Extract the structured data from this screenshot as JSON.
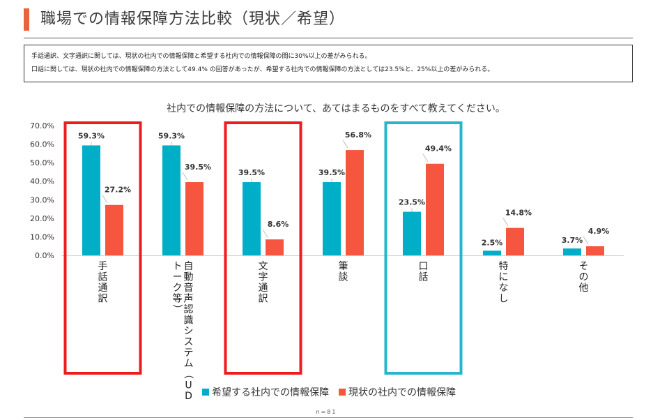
{
  "page": {
    "title": "職場での情報保障方法比較（現状／希望）",
    "summary": [
      "手話通訳、文字通訳に関しては、現状の社内での情報保障と希望する社内での情報保障の間に30%以上の差がみられる。",
      "口話に関しては、現状の社内での情報保障の方法として49.4% の回答があったが、希望する社内での情報保障の方法としては23.5%と、25%以上の差がみられる。"
    ],
    "sample_note": "n=81"
  },
  "colors": {
    "accent": "#e8643c",
    "series_wish": "#00aec7",
    "series_current": "#f6553f",
    "highlight_red": "#ee1c1c",
    "highlight_teal": "#27b5cc"
  },
  "chart_data": {
    "type": "bar",
    "title": "社内での情報保障の方法について、あてはまるものをすべて教えてください。",
    "categories": [
      "手話通訳",
      "自動音声認識システム（UDトーク等）",
      "文字通訳",
      "筆談",
      "口話",
      "特になし",
      "その他"
    ],
    "category_label_columns": [
      [
        "手話通訳"
      ],
      [
        "自動音声認識システム（UD",
        "トーク等）"
      ],
      [
        "文字通訳"
      ],
      [
        "筆談"
      ],
      [
        "口話"
      ],
      [
        "特になし"
      ],
      [
        "その他"
      ]
    ],
    "series": [
      {
        "name": "希望する社内での情報保障",
        "values": [
          59.3,
          59.3,
          39.5,
          39.5,
          23.5,
          2.5,
          3.7
        ],
        "color": "#00aec7"
      },
      {
        "name": "現状の社内での情報保障",
        "values": [
          27.2,
          39.5,
          8.6,
          56.8,
          49.4,
          14.8,
          4.9
        ],
        "color": "#f6553f"
      }
    ],
    "value_labels": [
      [
        "59.3%",
        "59.3%",
        "39.5%",
        "39.5%",
        "23.5%",
        "2.5%",
        "3.7%"
      ],
      [
        "27.2%",
        "39.5%",
        "8.6%",
        "56.8%",
        "49.4%",
        "14.8%",
        "4.9%"
      ]
    ],
    "ylim": [
      0,
      70
    ],
    "yticks": [
      0,
      10,
      20,
      30,
      40,
      50,
      60,
      70
    ],
    "ytick_labels": [
      "0.0%",
      "10.0%",
      "20.0%",
      "30.0%",
      "40.0%",
      "50.0%",
      "60.0%",
      "70.0%"
    ],
    "xlabel": "",
    "ylabel": "",
    "grid": false,
    "legend_position": "bottom-center",
    "highlights": [
      {
        "category_index": 0,
        "color": "#ee1c1c"
      },
      {
        "category_index": 2,
        "color": "#ee1c1c"
      },
      {
        "category_index": 4,
        "color": "#27b5cc"
      }
    ]
  }
}
